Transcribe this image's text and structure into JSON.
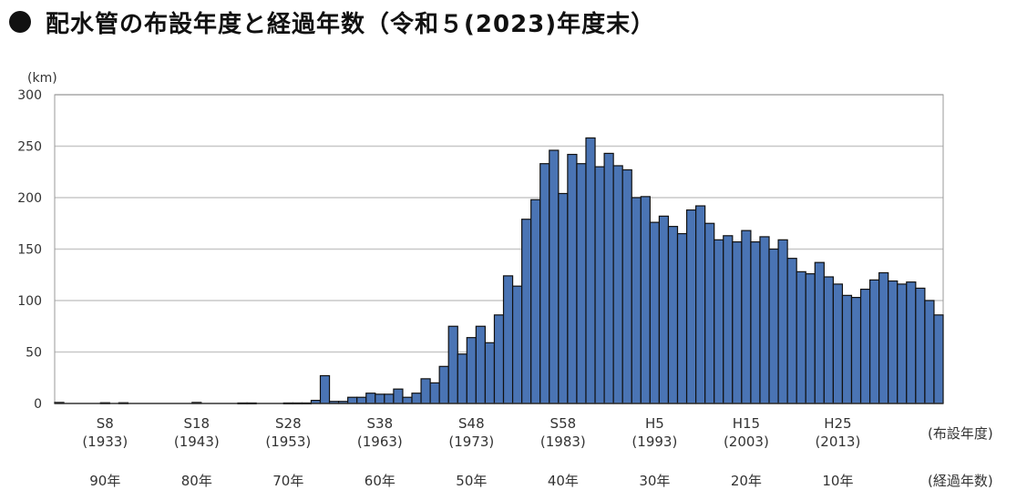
{
  "title": "配水管の布設年度と経過年数（令和５(2023)年度末）",
  "chart_data": {
    "type": "bar",
    "title": "配水管の布設年度と経過年数（令和５(2023)年度末）",
    "ylabel": "(km)",
    "ylim": [
      0,
      300
    ],
    "yticks": [
      "0",
      "50",
      "100",
      "150",
      "200",
      "250",
      "300"
    ],
    "grid": true,
    "first_year": 1928,
    "values": [
      1,
      0,
      0,
      0,
      0,
      0.7,
      0,
      0.7,
      0,
      0,
      0,
      0,
      0,
      0,
      0,
      1,
      0,
      0,
      0,
      0,
      0.5,
      0.5,
      0,
      0,
      0,
      0.5,
      0.5,
      0.5,
      3,
      27,
      2,
      2,
      6,
      6,
      10,
      9,
      9,
      14,
      6,
      10,
      24,
      20,
      36,
      75,
      48,
      64,
      75,
      59,
      86,
      124,
      114,
      179,
      198,
      233,
      246,
      204,
      242,
      233,
      258,
      230,
      243,
      231,
      227,
      200,
      201,
      176,
      182,
      172,
      165,
      188,
      192,
      175,
      159,
      163,
      157,
      168,
      157,
      162,
      150,
      159,
      141,
      128,
      126,
      137,
      123,
      116,
      105,
      103,
      111,
      120,
      127,
      119,
      116,
      118,
      112,
      100,
      86
    ],
    "era_labels": [
      "S8",
      "S18",
      "S28",
      "S38",
      "S48",
      "S58",
      "H5",
      "H15",
      "H25"
    ],
    "year_labels": [
      "(1933)",
      "(1943)",
      "(1953)",
      "(1963)",
      "(1973)",
      "(1983)",
      "(1993)",
      "(2003)",
      "(2013)"
    ],
    "elapsed_labels": [
      "90年",
      "80年",
      "70年",
      "60年",
      "50年",
      "40年",
      "30年",
      "20年",
      "10年"
    ],
    "label_years": [
      1933,
      1943,
      1953,
      1963,
      1973,
      1983,
      1993,
      2003,
      2013
    ],
    "xlabel_year": "(布設年度)",
    "xlabel_elapsed": "(経過年数)",
    "colors": {
      "bar": "#4a74b4",
      "bar_edge": "#111111",
      "grid": "#c8c8c8",
      "frame": "#999999"
    }
  }
}
